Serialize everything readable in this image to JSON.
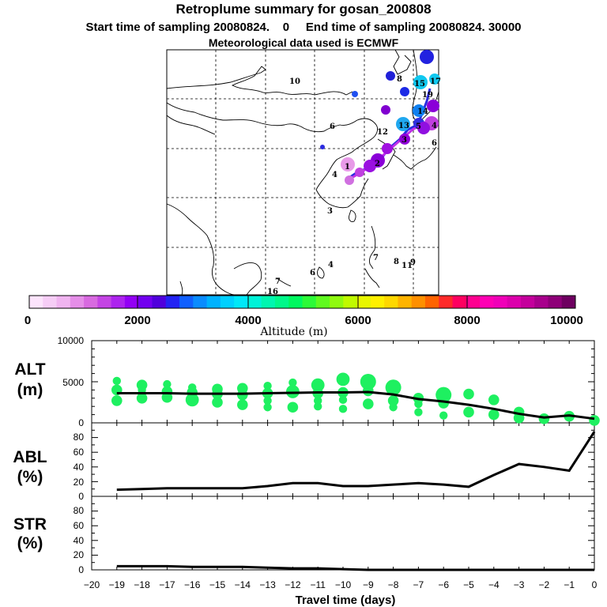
{
  "title": "Retroplume summary for gosan_200808",
  "subtitle": "Start time of sampling 20080824.    0     End time of sampling 20080824. 30000",
  "met_line": "Meteorological data used is ECMWF",
  "colorbar": {
    "label": "Altitude (m)",
    "ticks": [
      "0",
      "2000",
      "4000",
      "6000",
      "8000",
      "10000"
    ],
    "colors": [
      "#fce4fc",
      "#f6cdf6",
      "#f0b4f0",
      "#e58ee8",
      "#d86ae0",
      "#c444e4",
      "#ad24ee",
      "#9300f5",
      "#7200f0",
      "#5000dc",
      "#2323f3",
      "#1060ff",
      "#0a8cff",
      "#00b2ff",
      "#00d0ff",
      "#00e8f8",
      "#00f2d8",
      "#00f6b0",
      "#00f88a",
      "#00f860",
      "#2cfa38",
      "#60fa20",
      "#90fa10",
      "#c0fa00",
      "#e8f600",
      "#fff000",
      "#ffd800",
      "#ffb400",
      "#ff9000",
      "#ff6400",
      "#ff2a2a",
      "#ff0060",
      "#ff0090",
      "#ff00b4",
      "#f000b8",
      "#dc00ac",
      "#c4009c",
      "#a8008c",
      "#8e0078",
      "#6e0060"
    ]
  },
  "map": {
    "labels": [
      "10",
      "6",
      "4",
      "3",
      "4",
      "6",
      "7",
      "16",
      "7",
      "8",
      "11",
      "9",
      "12",
      "8",
      "6",
      "1",
      "2",
      "3",
      "4",
      "5",
      "13",
      "14",
      "15",
      "17",
      "19"
    ]
  },
  "chart_data": [
    {
      "type": "scatter",
      "panel": "ALT",
      "ylabel": "ALT\n(m)",
      "ylim": [
        0,
        10000
      ],
      "yticks": [
        "10000",
        "5000",
        "0"
      ],
      "xlim": [
        -20,
        0
      ],
      "mean_line": {
        "x": [
          -19,
          -18,
          -17,
          -16,
          -15,
          -14,
          -13,
          -12,
          -11,
          -10,
          -9,
          -8,
          -7,
          -6,
          -5,
          -4,
          -3,
          -2,
          -1,
          0
        ],
        "y": [
          3600,
          3600,
          3600,
          3550,
          3550,
          3550,
          3600,
          3650,
          3700,
          3700,
          3750,
          3450,
          2900,
          2600,
          2200,
          1700,
          1100,
          650,
          900,
          500
        ]
      },
      "points": [
        {
          "x": -19,
          "y": 5100,
          "s": 2
        },
        {
          "x": -19,
          "y": 4000,
          "s": 3
        },
        {
          "x": -19,
          "y": 2700,
          "s": 3
        },
        {
          "x": -18,
          "y": 4600,
          "s": 3
        },
        {
          "x": -18,
          "y": 4000,
          "s": 2
        },
        {
          "x": -18,
          "y": 3000,
          "s": 3
        },
        {
          "x": -17,
          "y": 4700,
          "s": 2
        },
        {
          "x": -17,
          "y": 3800,
          "s": 3
        },
        {
          "x": -17,
          "y": 3100,
          "s": 3
        },
        {
          "x": -16,
          "y": 4300,
          "s": 2
        },
        {
          "x": -16,
          "y": 3700,
          "s": 3
        },
        {
          "x": -16,
          "y": 2800,
          "s": 4
        },
        {
          "x": -15,
          "y": 4100,
          "s": 3
        },
        {
          "x": -15,
          "y": 3500,
          "s": 3
        },
        {
          "x": -15,
          "y": 2500,
          "s": 3
        },
        {
          "x": -14,
          "y": 4200,
          "s": 3
        },
        {
          "x": -14,
          "y": 3400,
          "s": 3
        },
        {
          "x": -14,
          "y": 2200,
          "s": 3
        },
        {
          "x": -13,
          "y": 4500,
          "s": 2
        },
        {
          "x": -13,
          "y": 3600,
          "s": 3
        },
        {
          "x": -13,
          "y": 2700,
          "s": 2
        },
        {
          "x": -13,
          "y": 1900,
          "s": 2
        },
        {
          "x": -12,
          "y": 4900,
          "s": 2
        },
        {
          "x": -12,
          "y": 3800,
          "s": 4
        },
        {
          "x": -12,
          "y": 1900,
          "s": 3
        },
        {
          "x": -11,
          "y": 4600,
          "s": 4
        },
        {
          "x": -11,
          "y": 3600,
          "s": 3
        },
        {
          "x": -11,
          "y": 2700,
          "s": 2
        },
        {
          "x": -11,
          "y": 2000,
          "s": 2
        },
        {
          "x": -10,
          "y": 5300,
          "s": 4
        },
        {
          "x": -10,
          "y": 3700,
          "s": 3
        },
        {
          "x": -10,
          "y": 2800,
          "s": 2
        },
        {
          "x": -10,
          "y": 1700,
          "s": 2
        },
        {
          "x": -9,
          "y": 5000,
          "s": 5
        },
        {
          "x": -9,
          "y": 3900,
          "s": 3
        },
        {
          "x": -9,
          "y": 2300,
          "s": 3
        },
        {
          "x": -8,
          "y": 4300,
          "s": 5
        },
        {
          "x": -8,
          "y": 2700,
          "s": 3
        },
        {
          "x": -8,
          "y": 1900,
          "s": 2
        },
        {
          "x": -7,
          "y": 3000,
          "s": 3
        },
        {
          "x": -7,
          "y": 2300,
          "s": 2
        },
        {
          "x": -7,
          "y": 1300,
          "s": 2
        },
        {
          "x": -6,
          "y": 3400,
          "s": 5
        },
        {
          "x": -6,
          "y": 2400,
          "s": 3
        },
        {
          "x": -6,
          "y": 900,
          "s": 2
        },
        {
          "x": -5,
          "y": 3500,
          "s": 3
        },
        {
          "x": -5,
          "y": 1300,
          "s": 3
        },
        {
          "x": -4,
          "y": 2800,
          "s": 3
        },
        {
          "x": -4,
          "y": 1000,
          "s": 3
        },
        {
          "x": -3,
          "y": 1300,
          "s": 3
        },
        {
          "x": -3,
          "y": 600,
          "s": 3
        },
        {
          "x": -2,
          "y": 500,
          "s": 3
        },
        {
          "x": -1,
          "y": 800,
          "s": 3
        },
        {
          "x": 0,
          "y": 300,
          "s": 3
        }
      ],
      "point_color": "#1ef060"
    },
    {
      "type": "line",
      "panel": "ABL",
      "ylabel": "ABL\n(%)",
      "ylim": [
        0,
        100
      ],
      "yticks": [
        "80",
        "60",
        "40",
        "20",
        "0"
      ],
      "x": [
        -19,
        -18,
        -17,
        -16,
        -15,
        -14,
        -13,
        -12,
        -11,
        -10,
        -9,
        -8,
        -7,
        -6,
        -5,
        -4,
        -3,
        -2,
        -1,
        0
      ],
      "y": [
        9,
        10,
        11,
        11,
        11,
        11,
        14,
        18,
        18,
        14,
        14,
        16,
        18,
        16,
        13,
        29,
        44,
        40,
        35,
        88
      ]
    },
    {
      "type": "line",
      "panel": "STR",
      "ylabel": "STR\n(%)",
      "ylim": [
        0,
        100
      ],
      "yticks": [
        "80",
        "60",
        "40",
        "20",
        "0"
      ],
      "x": [
        -19,
        -18,
        -17,
        -16,
        -15,
        -14,
        -13,
        -12,
        -11,
        -10,
        -9,
        -8,
        -7,
        -6,
        -5,
        -4,
        -3,
        -2,
        -1,
        0
      ],
      "y": [
        5,
        5,
        5,
        4,
        4,
        4,
        3,
        2,
        2,
        1,
        0,
        0,
        0,
        0,
        0,
        0,
        0,
        0,
        0,
        0
      ]
    }
  ],
  "xaxis": {
    "label": "Travel time (days)",
    "ticks": [
      "−20",
      "−19",
      "−18",
      "−17",
      "−16",
      "−15",
      "−14",
      "−13",
      "−12",
      "−11",
      "−10",
      "−9",
      "−8",
      "−7",
      "−6",
      "−5",
      "−4",
      "−3",
      "−2",
      "−1",
      "0"
    ]
  }
}
